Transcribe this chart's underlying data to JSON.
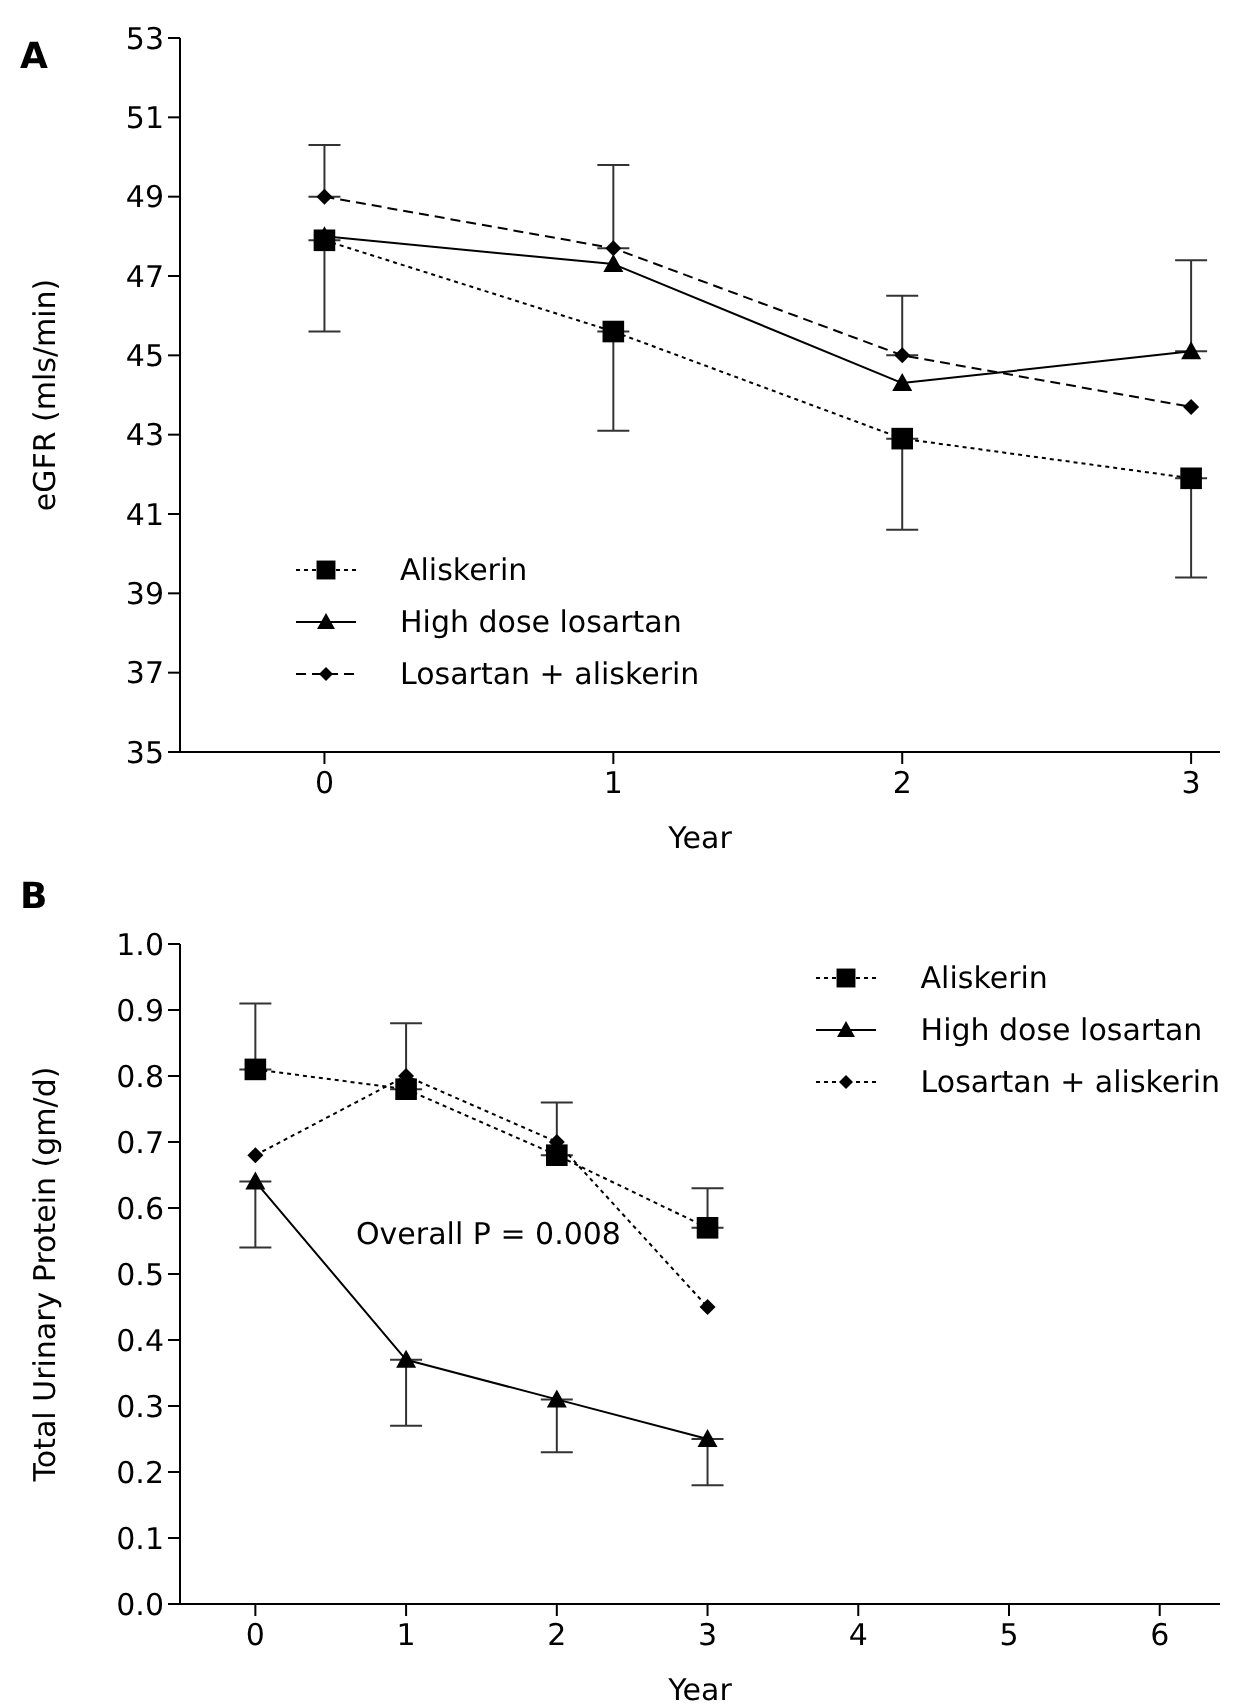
{
  "chart_data": [
    {
      "type": "line",
      "title": "A",
      "xlabel": "Year",
      "ylabel": "eGFR (mls/min)",
      "xlim": [
        -0.5,
        3.1
      ],
      "xticks": [
        0,
        1,
        2,
        3
      ],
      "ylim": [
        35,
        53
      ],
      "yticks": [
        35,
        37,
        39,
        41,
        43,
        45,
        47,
        49,
        51,
        53
      ],
      "x": [
        0,
        1,
        2,
        3
      ],
      "legend": "bottom left",
      "series": [
        {
          "name": "Aliskerin",
          "color": "#000000",
          "marker": "square",
          "line_style": "dotted",
          "values": [
            47.9,
            45.6,
            42.9,
            41.9
          ],
          "errors": [
            [
              45.6,
              47.9
            ],
            [
              43.1,
              45.6
            ],
            [
              40.6,
              42.9
            ],
            [
              39.4,
              41.9
            ]
          ]
        },
        {
          "name": "High dose losartan",
          "color": "#000000",
          "marker": "triangle",
          "line_style": "solid",
          "values": [
            48.0,
            47.3,
            44.3,
            45.1
          ],
          "errors": [
            null,
            null,
            null,
            [
              45.1,
              47.4
            ]
          ]
        },
        {
          "name": "Losartan + aliskerin",
          "color": "#000000",
          "marker": "diamond",
          "line_style": "dashed",
          "values": [
            49.0,
            47.7,
            45.0,
            43.7
          ],
          "errors": [
            [
              49.0,
              50.3
            ],
            [
              47.7,
              49.8
            ],
            [
              45.0,
              46.5
            ],
            null
          ]
        }
      ]
    },
    {
      "type": "line",
      "title": "B",
      "xlabel": "Year",
      "ylabel": "Total Urinary Protein (gm/d)",
      "xlim": [
        -0.5,
        6.4
      ],
      "xticks": [
        0,
        1,
        2,
        3,
        4,
        5,
        6
      ],
      "ylim": [
        0,
        1
      ],
      "yticks": [
        {
          "value": 0,
          "label": "0.0"
        },
        0.1,
        0.2,
        0.3,
        0.4,
        0.5,
        0.6,
        0.7,
        0.8,
        0.9,
        {
          "value": 1,
          "label": "1.0"
        }
      ],
      "x": [
        0,
        1,
        2,
        3
      ],
      "legend": "top right",
      "annotations": [
        "Overall P = 0.008"
      ],
      "series": [
        {
          "name": "Aliskerin",
          "color": "#000000",
          "marker": "square",
          "line_style": "dotted",
          "values": [
            0.81,
            0.78,
            0.68,
            0.57
          ],
          "errors": [
            [
              0.81,
              0.91
            ],
            [
              0.78,
              0.88
            ],
            [
              0.68,
              0.76
            ],
            [
              0.57,
              0.63
            ]
          ]
        },
        {
          "name": "High dose losartan",
          "color": "#000000",
          "marker": "triangle",
          "line_style": "solid",
          "values": [
            0.64,
            0.37,
            0.31,
            0.25
          ],
          "errors": [
            [
              0.54,
              0.64
            ],
            [
              0.27,
              0.37
            ],
            [
              0.23,
              0.31
            ],
            [
              0.18,
              0.25
            ]
          ]
        },
        {
          "name": "Losartan + aliskerin",
          "color": "#000000",
          "marker": "diamond",
          "line_style": "dotted",
          "values": [
            0.68,
            0.8,
            0.7,
            0.45
          ]
        }
      ]
    }
  ]
}
